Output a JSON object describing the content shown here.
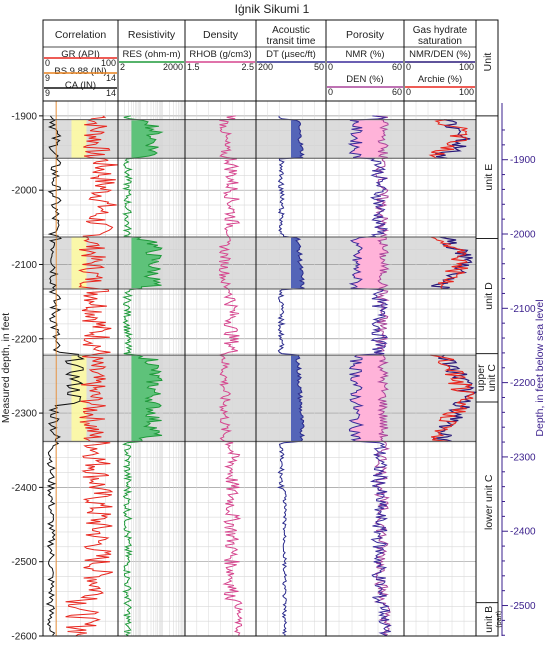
{
  "chart_data": {
    "type": "line",
    "title": "Iġnik Sikumi 1",
    "ylabel_left": "Measured depth, in feet",
    "ylabel_right": "Depth, in feet below sea level",
    "depth_range": [
      -1880,
      -2600
    ],
    "left_ticks": [
      -1900,
      -2000,
      -2100,
      -2200,
      -2300,
      -2400,
      -2500,
      -2600
    ],
    "left_tick_labels": [
      "-1900",
      "-2000",
      "-2100",
      "-2200",
      "-2300",
      "-2400",
      "-2500",
      "-2600"
    ],
    "right_ticks": [
      -1900,
      -2000,
      -2100,
      -2200,
      -2300,
      -2400,
      -2500
    ],
    "right_tick_labels": [
      "-1900",
      "-2000",
      "-2100",
      "-2200",
      "-2300",
      "-2400",
      "-2500"
    ],
    "tracks": [
      {
        "name": "Correlation",
        "curves": [
          {
            "label": "GR (API)",
            "min": "0",
            "max": "100",
            "color": "#e8261e"
          },
          {
            "label": "BS 9.88 (IN)",
            "min": "9",
            "max": "14",
            "color": "#e8821e"
          },
          {
            "label": "CA (IN)",
            "min": "9",
            "max": "14",
            "color": "#111111"
          }
        ]
      },
      {
        "name": "Resistivity",
        "curves": [
          {
            "label": "RES (ohm-m)",
            "min": "2",
            "max": "2000",
            "color": "#1f9a3a"
          }
        ]
      },
      {
        "name": "Density",
        "curves": [
          {
            "label": "RHOB (g/cm3)",
            "min": "1.5",
            "max": "2.5",
            "color": "#d6458e"
          }
        ]
      },
      {
        "name": "Acoustic transit time",
        "curves": [
          {
            "label": "DT (µsec/ft)",
            "min": "200",
            "max": "50",
            "color": "#2a2a8c"
          }
        ]
      },
      {
        "name": "Porosity",
        "curves": [
          {
            "label": "NMR (%)",
            "min": "0",
            "max": "60",
            "color": "#3a2a9a"
          },
          {
            "label": "DEN (%)",
            "min": "0",
            "max": "60",
            "color": "#a8449a"
          }
        ]
      },
      {
        "name": "Gas hydrate saturation",
        "curves": [
          {
            "label": "NMR/DEN (%)",
            "min": "0",
            "max": "100",
            "color": "#2a1a7a"
          },
          {
            "label": "Archie (%)",
            "min": "0",
            "max": "100",
            "color": "#e8261e"
          }
        ]
      }
    ],
    "unit_header": "Unit",
    "units": [
      {
        "label": "unit E",
        "top": -1900,
        "base": -2065
      },
      {
        "label": "unit D",
        "top": -2065,
        "base": -2220
      },
      {
        "label": "upper unit C",
        "top": -2220,
        "base": -2285
      },
      {
        "label": "lower unit C",
        "top": -2285,
        "base": -2555
      },
      {
        "label": "unit B",
        "sub": "(part)",
        "top": -2555,
        "base": -2600
      }
    ],
    "hydrate_zones": [
      {
        "top": -1905,
        "base": -1957
      },
      {
        "top": -2063,
        "base": -2133
      },
      {
        "top": -2222,
        "base": -2338
      }
    ],
    "colors": {
      "gr": "#e8261e",
      "res": "#1f9a3a",
      "rhob": "#d6458e",
      "dt": "#2a2a8c",
      "nmr": "#3a2a9a",
      "den": "#a8449a",
      "archie": "#e8261e",
      "nmrden": "#2a1a7a",
      "zone_fill": "#dcdcdc",
      "gr_fill": "#fffca0",
      "res_fill": "#5ec27a",
      "dt_fill": "#5465b8",
      "por_fill": "#ffb3d9",
      "right_axis": "#3a1f8c"
    }
  }
}
